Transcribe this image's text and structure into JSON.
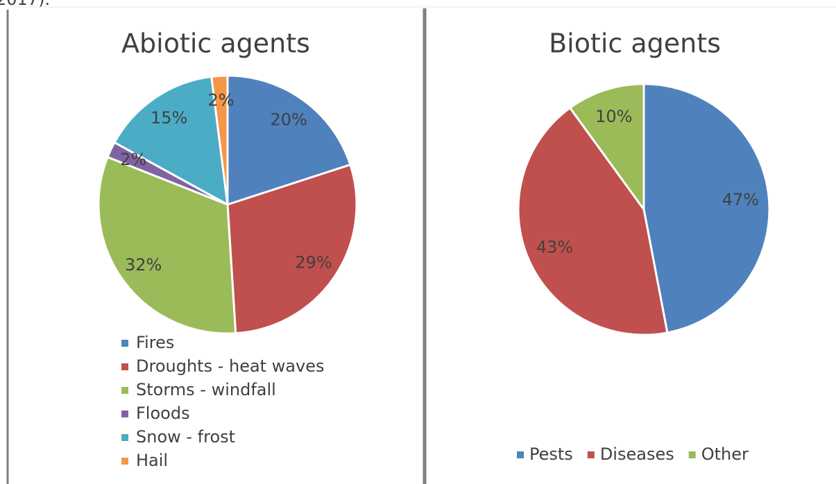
{
  "caption_fragment": "2017).",
  "chart_data": [
    {
      "type": "pie",
      "title": "Abiotic agents",
      "categories": [
        "Fires",
        "Droughts - heat waves",
        "Storms - windfall",
        "Floods",
        "Snow - frost",
        "Hail"
      ],
      "values": [
        20,
        29,
        32,
        2,
        15,
        2
      ],
      "value_labels": [
        "20%",
        "29%",
        "32%",
        "2%",
        "15%",
        "2%"
      ],
      "colors": [
        "#4f81bd",
        "#c0504d",
        "#9bbb59",
        "#8064a2",
        "#4bacc6",
        "#f79646"
      ],
      "legend": "bottom"
    },
    {
      "type": "pie",
      "title": "Biotic agents",
      "categories": [
        "Pests",
        "Diseases",
        "Other"
      ],
      "values": [
        47,
        43,
        10
      ],
      "value_labels": [
        "47%",
        "43%",
        "10%"
      ],
      "colors": [
        "#4f81bd",
        "#c0504d",
        "#9bbb59"
      ],
      "legend": "bottom"
    }
  ]
}
